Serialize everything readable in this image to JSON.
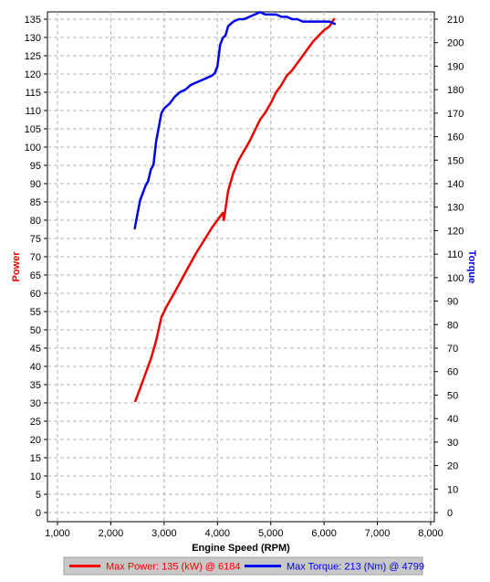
{
  "chart_data": {
    "type": "line",
    "title": "",
    "xlabel": "Engine Speed (RPM)",
    "ylabel_left": "Power",
    "ylabel_right": "Torque",
    "xlim": [
      1000,
      8000
    ],
    "ylim_left": [
      0,
      135
    ],
    "ylim_right": [
      0,
      210
    ],
    "x_ticks": [
      1000,
      2000,
      3000,
      4000,
      5000,
      6000,
      7000,
      8000
    ],
    "x_tick_labels": [
      "1,000",
      "2,000",
      "3,000",
      "4,000",
      "5,000",
      "6,000",
      "7,000",
      "8,000"
    ],
    "y_left_ticks": [
      0,
      5,
      10,
      15,
      20,
      25,
      30,
      35,
      40,
      45,
      50,
      55,
      60,
      65,
      70,
      75,
      80,
      85,
      90,
      95,
      100,
      105,
      110,
      115,
      120,
      125,
      130,
      135
    ],
    "y_right_ticks": [
      0,
      10,
      20,
      30,
      40,
      50,
      60,
      70,
      80,
      90,
      100,
      110,
      120,
      130,
      140,
      150,
      160,
      170,
      180,
      190,
      200,
      210
    ],
    "grid": true,
    "legend_position": "bottom",
    "colors": {
      "power": "#ee0000",
      "torque": "#0000ee",
      "legend_bg": "#c8c8c8"
    },
    "series": [
      {
        "name": "Power",
        "axis": "left",
        "color": "#ee0000",
        "legend_label": "Max Power: 135 (kW) @ 6184",
        "x": [
          2460,
          2550,
          2650,
          2750,
          2850,
          2950,
          3050,
          3150,
          3300,
          3450,
          3600,
          3750,
          3900,
          4000,
          4100,
          4120,
          4200,
          4300,
          4400,
          4500,
          4600,
          4700,
          4800,
          4900,
          5000,
          5100,
          5200,
          5300,
          5400,
          5500,
          5600,
          5700,
          5800,
          5900,
          6000,
          6100,
          6184
        ],
        "values": [
          30.5,
          34,
          38,
          42,
          47,
          53.5,
          56.5,
          59,
          63,
          67,
          71,
          74.5,
          78,
          80,
          82,
          80,
          88,
          93,
          96.5,
          99,
          101.5,
          104.5,
          107.5,
          109.5,
          112,
          115,
          117,
          119.5,
          121,
          123,
          125,
          127,
          129,
          130.5,
          132,
          133,
          135
        ]
      },
      {
        "name": "Torque",
        "axis": "right",
        "color": "#0000ee",
        "legend_label": "Max Torque: 213 (Nm) @ 4799",
        "x": [
          2450,
          2500,
          2550,
          2600,
          2650,
          2700,
          2750,
          2800,
          2850,
          2900,
          2950,
          3000,
          3050,
          3100,
          3200,
          3300,
          3400,
          3500,
          3600,
          3700,
          3800,
          3900,
          3950,
          4000,
          4050,
          4100,
          4150,
          4200,
          4300,
          4400,
          4500,
          4600,
          4700,
          4799,
          4900,
          5000,
          5100,
          5200,
          5300,
          5400,
          5500,
          5600,
          5700,
          5800,
          5900,
          6000,
          6100,
          6200
        ],
        "values": [
          121,
          127,
          133,
          136,
          139,
          141,
          146,
          148,
          158,
          164,
          170,
          172,
          173,
          174,
          177,
          179,
          180,
          182,
          183,
          184,
          185,
          186,
          187,
          190,
          199,
          202,
          203,
          207,
          209,
          210,
          210,
          211,
          212,
          213,
          212,
          212,
          212,
          211,
          211,
          210,
          210,
          209,
          209,
          209,
          209,
          209,
          209,
          208
        ]
      }
    ]
  }
}
